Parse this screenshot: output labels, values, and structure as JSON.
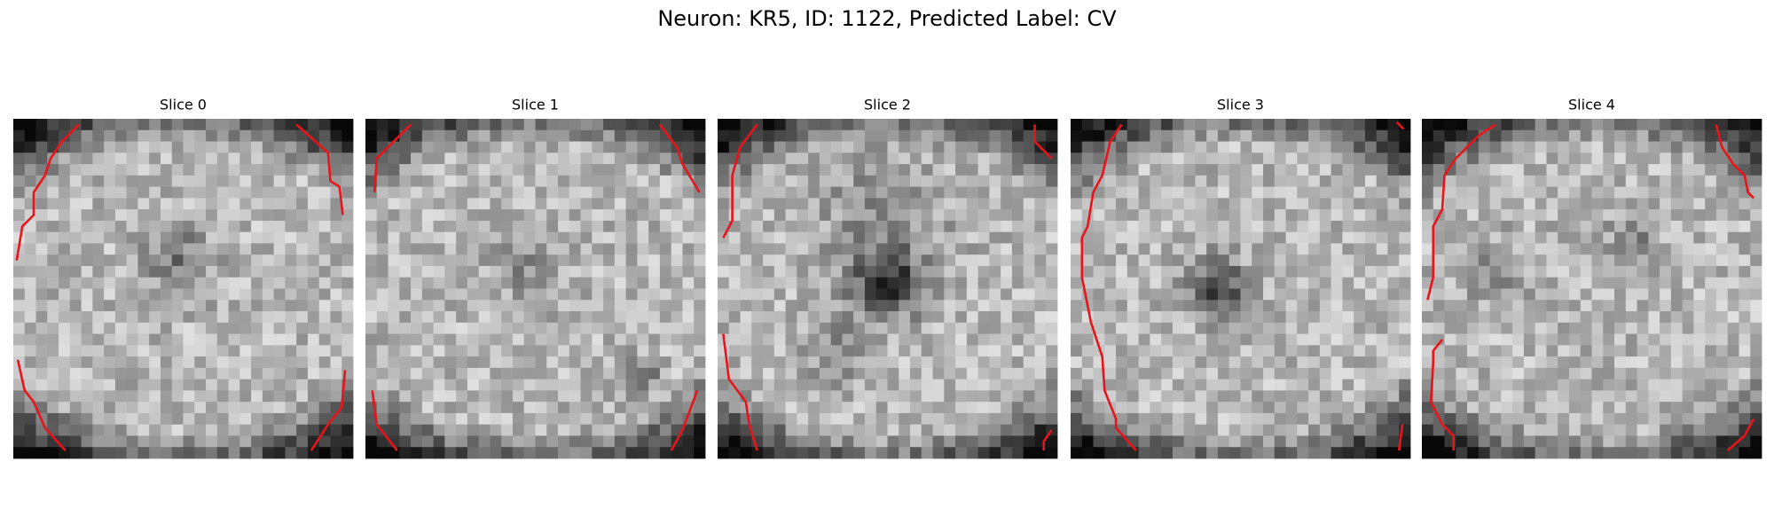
{
  "title": "Neuron: KR5, ID: 1122, Predicted Label: CV",
  "panels": [
    {
      "title": "Slice 0"
    },
    {
      "title": "Slice 1"
    },
    {
      "title": "Slice 2"
    },
    {
      "title": "Slice 3"
    },
    {
      "title": "Slice 4"
    }
  ]
}
